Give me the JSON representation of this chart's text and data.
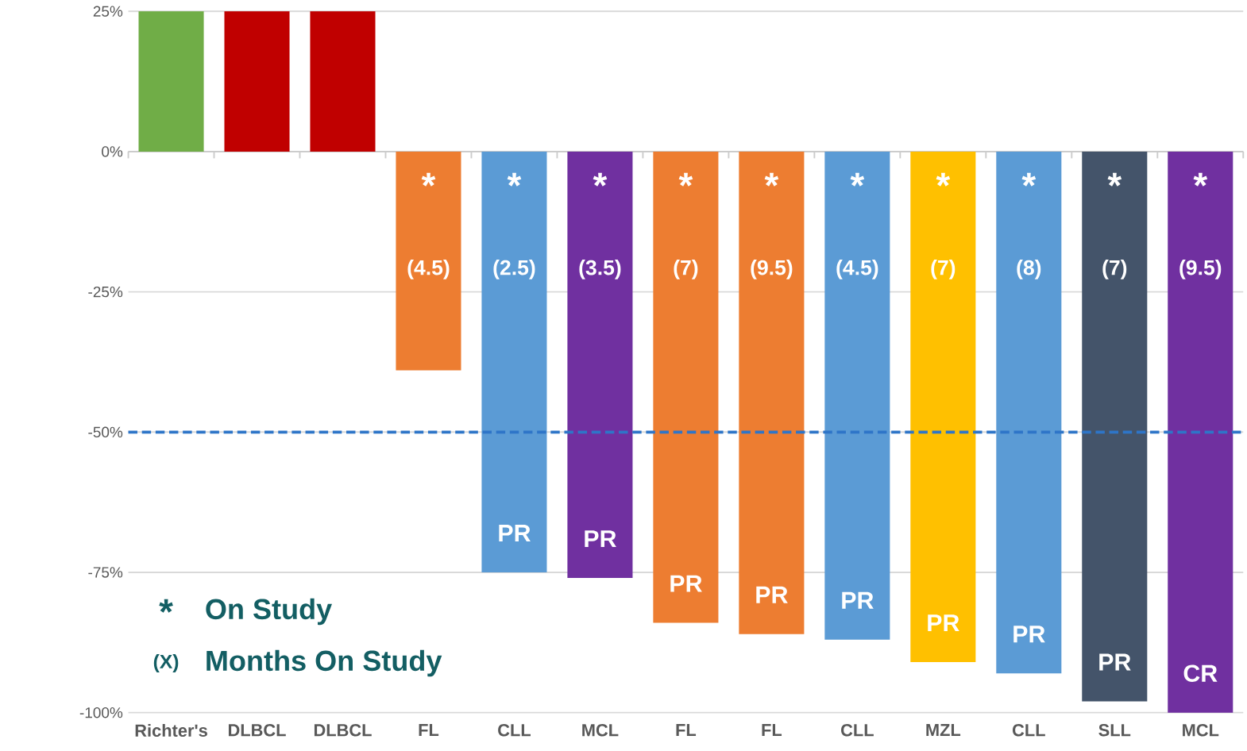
{
  "chart_data": {
    "type": "bar",
    "categories": [
      "Richter's",
      "DLBCL",
      "DLBCL",
      "FL",
      "CLL",
      "MCL",
      "FL",
      "FL",
      "CLL",
      "MZL",
      "CLL",
      "SLL",
      "MCL"
    ],
    "values": [
      25,
      25,
      25,
      -39,
      -75,
      -76,
      -84,
      -86,
      -87,
      -91,
      -93,
      -98,
      -100
    ],
    "colors": [
      "#70ad47",
      "#c00000",
      "#c00000",
      "#ed7d31",
      "#5b9bd5",
      "#7030a0",
      "#ed7d31",
      "#ed7d31",
      "#5b9bd5",
      "#ffc000",
      "#5b9bd5",
      "#44546a",
      "#7030a0"
    ],
    "ylim": [
      -100,
      25
    ],
    "yticks": [
      {
        "value": 25,
        "label": "25%"
      },
      {
        "value": 0,
        "label": "0%"
      },
      {
        "value": -25,
        "label": "-25%"
      },
      {
        "value": -50,
        "label": "-50%"
      },
      {
        "value": -75,
        "label": "-75%"
      },
      {
        "value": -100,
        "label": "-100%"
      }
    ],
    "grid": "y",
    "ref_lines": [
      {
        "axis": "y",
        "value": -50,
        "color": "#2e75c8",
        "line_style": "dashed"
      }
    ],
    "value_labels": [
      null,
      null,
      null,
      null,
      "PR",
      "PR",
      "PR",
      "PR",
      "PR",
      "PR",
      "PR",
      "PR",
      "CR"
    ],
    "annotations": [
      "*",
      "On Study",
      "(X)",
      "Months On Study",
      "*",
      "(4.5)",
      "*",
      "(2.5)",
      "*",
      "(3.5)",
      "*",
      "(7)",
      "*",
      "(9.5)",
      "*",
      "(4.5)",
      "*",
      "(7)",
      "*",
      "(8)",
      "*",
      "(7)",
      "*",
      "(9.5)"
    ]
  }
}
